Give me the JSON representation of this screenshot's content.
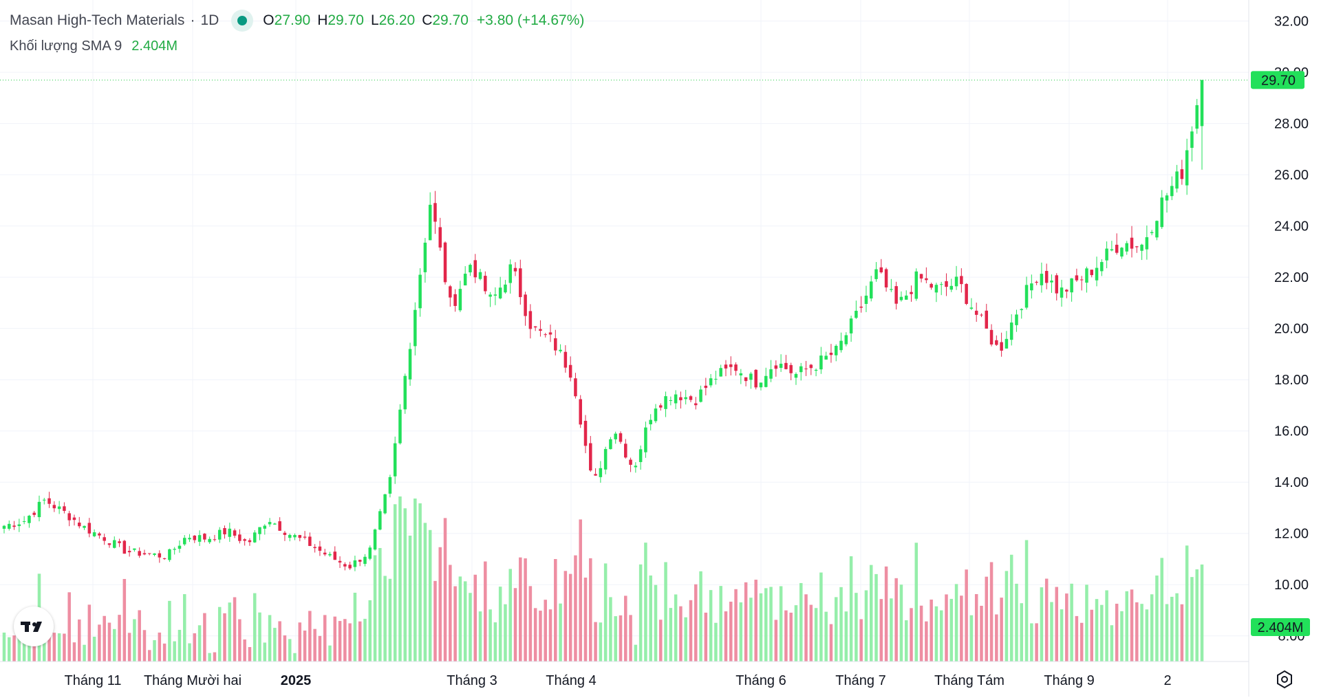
{
  "legend": {
    "symbol": "Masan High-Tech Materials",
    "separator": "·",
    "interval": "1D",
    "o_label": "O",
    "o_value": "27.90",
    "h_label": "H",
    "h_value": "29.70",
    "l_label": "L",
    "l_value": "26.20",
    "c_label": "C",
    "c_value": "29.70",
    "change": "+3.80 (+14.67%)",
    "volume_label": "Khối lượng SMA 9",
    "volume_value": "2.404M"
  },
  "price_axis": {
    "labels": [
      "32.00",
      "30.00",
      "28.00",
      "26.00",
      "24.00",
      "22.00",
      "20.00",
      "18.00",
      "16.00",
      "14.00",
      "12.00",
      "10.00",
      "8.00"
    ],
    "last_price_label": "29.70",
    "volume_badge": "2.404M"
  },
  "time_axis": {
    "labels": [
      "Tháng 11",
      "Tháng Mười hai",
      "2025",
      "Tháng 3",
      "Tháng 4",
      "Tháng 6",
      "Tháng 7",
      "Tháng Tám",
      "Tháng 9",
      "2"
    ]
  },
  "colors": {
    "up": "#22e05a",
    "down": "#e2264a",
    "vol_up": "#95eeaa",
    "vol_down": "#ee8ea2",
    "last_line": "#22cc44"
  },
  "chart_data": {
    "type": "candlestick",
    "series": [
      {
        "name": "price",
        "anchor_closes": [
          12.3,
          12.5,
          13.3,
          12.8,
          12.2,
          11.8,
          11.3,
          11.2,
          11.1,
          11.9,
          11.8,
          12.1,
          11.6,
          12.6,
          12.0,
          11.6,
          11.1,
          10.7,
          11.3,
          14.0,
          19.5,
          25.0,
          20.8,
          22.6,
          21.0,
          22.4,
          20.0,
          19.5,
          18.2,
          13.8,
          16.2,
          14.5,
          17.0,
          17.5,
          17.2,
          18.1,
          18.5,
          17.9,
          18.7,
          18.2,
          18.6,
          19.1,
          20.5,
          22.2,
          20.8,
          22.0,
          21.5,
          21.8,
          20.4,
          19.1,
          20.9,
          22.3,
          21.4,
          21.9,
          22.6,
          23.4,
          23.2,
          24.9,
          26.1,
          29.7
        ]
      }
    ],
    "last_close": 29.7,
    "ylim": [
      7.0,
      32.5
    ],
    "volume_sma": "2.404M"
  }
}
